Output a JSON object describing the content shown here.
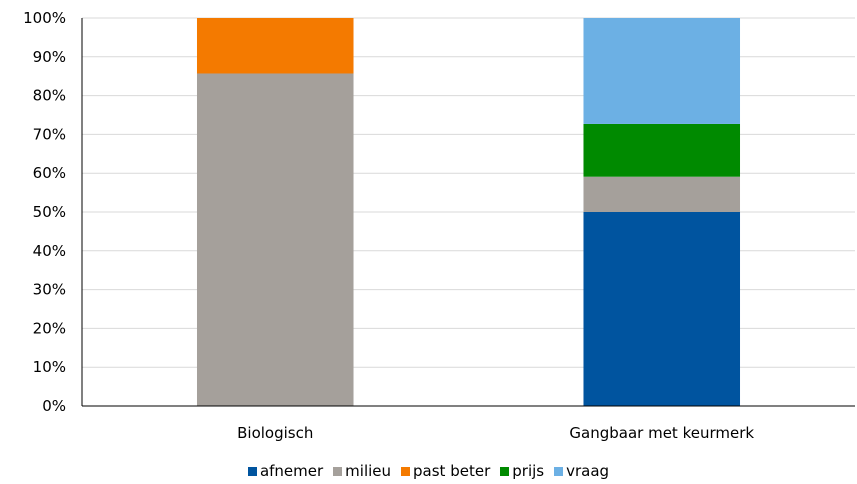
{
  "chart_data": {
    "type": "bar",
    "stacked": true,
    "normalized": true,
    "categories": [
      "Biologisch",
      "Gangbaar met keurmerk"
    ],
    "series": [
      {
        "name": "afnemer",
        "color": "#00549F",
        "values": [
          0,
          50
        ]
      },
      {
        "name": "milieu",
        "color": "#A5A09B",
        "values": [
          85.7,
          9.1
        ]
      },
      {
        "name": "past beter",
        "color": "#F47A00",
        "values": [
          14.3,
          0
        ]
      },
      {
        "name": "prijs",
        "color": "#008A00",
        "values": [
          0,
          13.6
        ]
      },
      {
        "name": "vraag",
        "color": "#6CB0E4",
        "values": [
          0,
          27.3
        ]
      }
    ],
    "yticks": [
      "0%",
      "10%",
      "20%",
      "30%",
      "40%",
      "50%",
      "60%",
      "70%",
      "80%",
      "90%",
      "100%"
    ],
    "ylim": [
      0,
      100
    ],
    "grid": true,
    "legend_position": "bottom",
    "title": "",
    "xlabel": "",
    "ylabel": ""
  }
}
